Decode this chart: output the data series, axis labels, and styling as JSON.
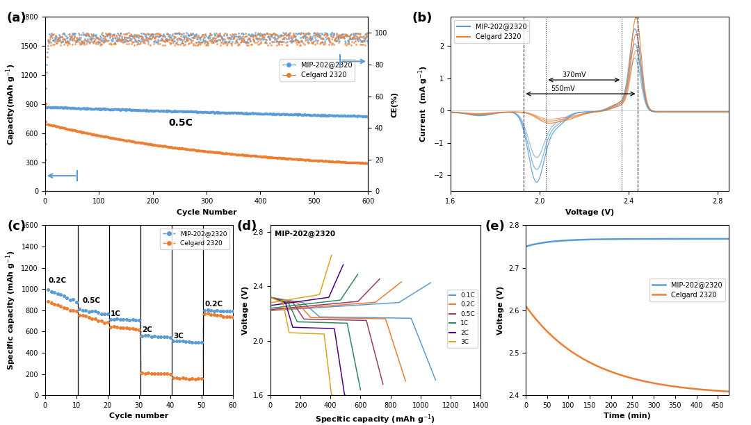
{
  "fig_width": 10.8,
  "fig_height": 6.12,
  "background": "#ffffff",
  "blue_color": "#5B9BD5",
  "orange_color": "#ED7D31",
  "panel_label_fontsize": 13,
  "label_fontsize": 8,
  "tick_fontsize": 7,
  "rate_colors_d": [
    "#5B9BD5",
    "#ED7D31",
    "#9C3A6B",
    "#2E8B57",
    "#4B0082",
    "#DAA520"
  ],
  "rate_labels_d": [
    "0.1C",
    "0.2C",
    "0.5C",
    "1C",
    "2C",
    "3C"
  ]
}
